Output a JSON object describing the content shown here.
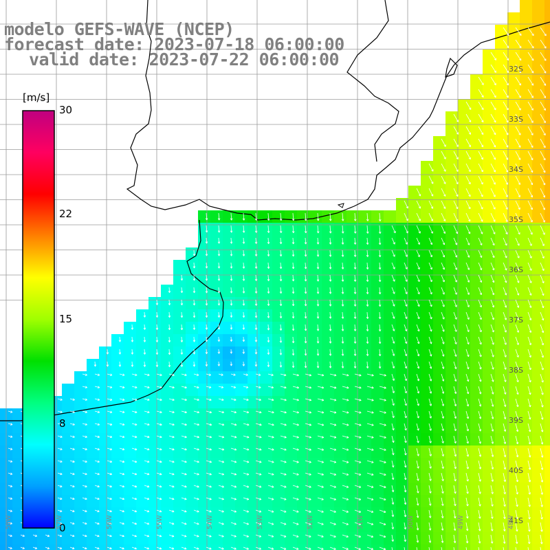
{
  "title": {
    "line1": "modelo GEFS-WAVE (NCEP)",
    "line2": "forecast date: 2023-07-18 06:00:00",
    "line3": "valid date: 2023-07-22 06:00:00"
  },
  "colorbar": {
    "unit": "[m/s]",
    "ticks": [
      "30",
      "22",
      "15",
      "8",
      "0"
    ],
    "stops": [
      "#0000ff",
      "#00a0ff",
      "#00ffff",
      "#00ff80",
      "#00e000",
      "#a0ff00",
      "#ffff00",
      "#ff8000",
      "#ff0000",
      "#ff0060",
      "#c00080"
    ]
  },
  "latitude_labels": [
    "32S",
    "33S",
    "34S",
    "35S",
    "36S",
    "37S",
    "38S",
    "39S",
    "40S",
    "41S"
  ],
  "longitude_labels": [
    "58W",
    "57W",
    "56W",
    "55W",
    "54W",
    "53W",
    "52W",
    "51W",
    "50W",
    "49W",
    "48W"
  ],
  "map_colors": {
    "land": "#ffffff",
    "coast": "#000000",
    "grid": "#9a9a9a",
    "arrows": "#ffffff"
  }
}
